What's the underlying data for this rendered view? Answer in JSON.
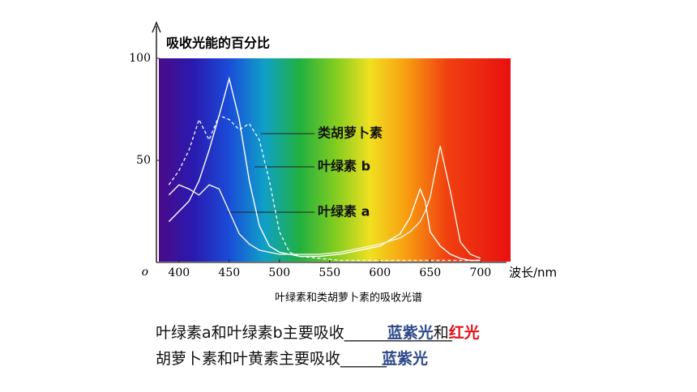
{
  "chart_data": {
    "type": "line",
    "y_axis_title": "吸收光能的百分比",
    "x_axis_label": "波长/nm",
    "caption": "叶绿素和类胡萝卜素的吸收光谱",
    "x": [
      390,
      400,
      410,
      420,
      430,
      440,
      450,
      460,
      470,
      480,
      490,
      500,
      510,
      520,
      540,
      560,
      580,
      600,
      620,
      630,
      640,
      645,
      650,
      660,
      670,
      680,
      690,
      700
    ],
    "xlim": [
      380,
      730
    ],
    "xticks": [
      400,
      450,
      500,
      550,
      600,
      650,
      700
    ],
    "ylim": [
      0,
      100
    ],
    "yticks": [
      {
        "value": 0,
        "label": "o"
      },
      50,
      100
    ],
    "series": [
      {
        "name": "类胡萝卜素",
        "color": "#e8f4ff",
        "values": [
          38,
          45,
          55,
          70,
          60,
          72,
          70,
          65,
          68,
          60,
          40,
          15,
          5,
          3,
          2,
          1,
          1,
          1,
          1,
          1,
          1,
          1,
          1,
          1,
          1,
          1,
          1,
          1
        ]
      },
      {
        "name": "叶绿素 b",
        "color": "#ffffff",
        "values": [
          20,
          25,
          30,
          40,
          55,
          72,
          90,
          70,
          40,
          18,
          8,
          5,
          4,
          3,
          3,
          4,
          6,
          8,
          14,
          22,
          36,
          30,
          15,
          8,
          4,
          2,
          1,
          1
        ]
      },
      {
        "name": "叶绿素 a",
        "color": "#f4f4e0",
        "values": [
          33,
          38,
          36,
          33,
          38,
          36,
          25,
          14,
          9,
          6,
          5,
          4,
          4,
          4,
          4,
          5,
          7,
          9,
          12,
          15,
          20,
          25,
          32,
          57,
          35,
          10,
          4,
          2
        ]
      }
    ]
  },
  "questions": [
    {
      "prompt": "叶绿素a和叶绿素b主要吸收",
      "blank": "______________",
      "answer1": "蓝紫光",
      "conj": "和",
      "answer2": "红光"
    },
    {
      "prompt": "胡萝卜素和叶黄素主要吸收",
      "blank": "______",
      "answer1": "蓝紫光"
    }
  ]
}
